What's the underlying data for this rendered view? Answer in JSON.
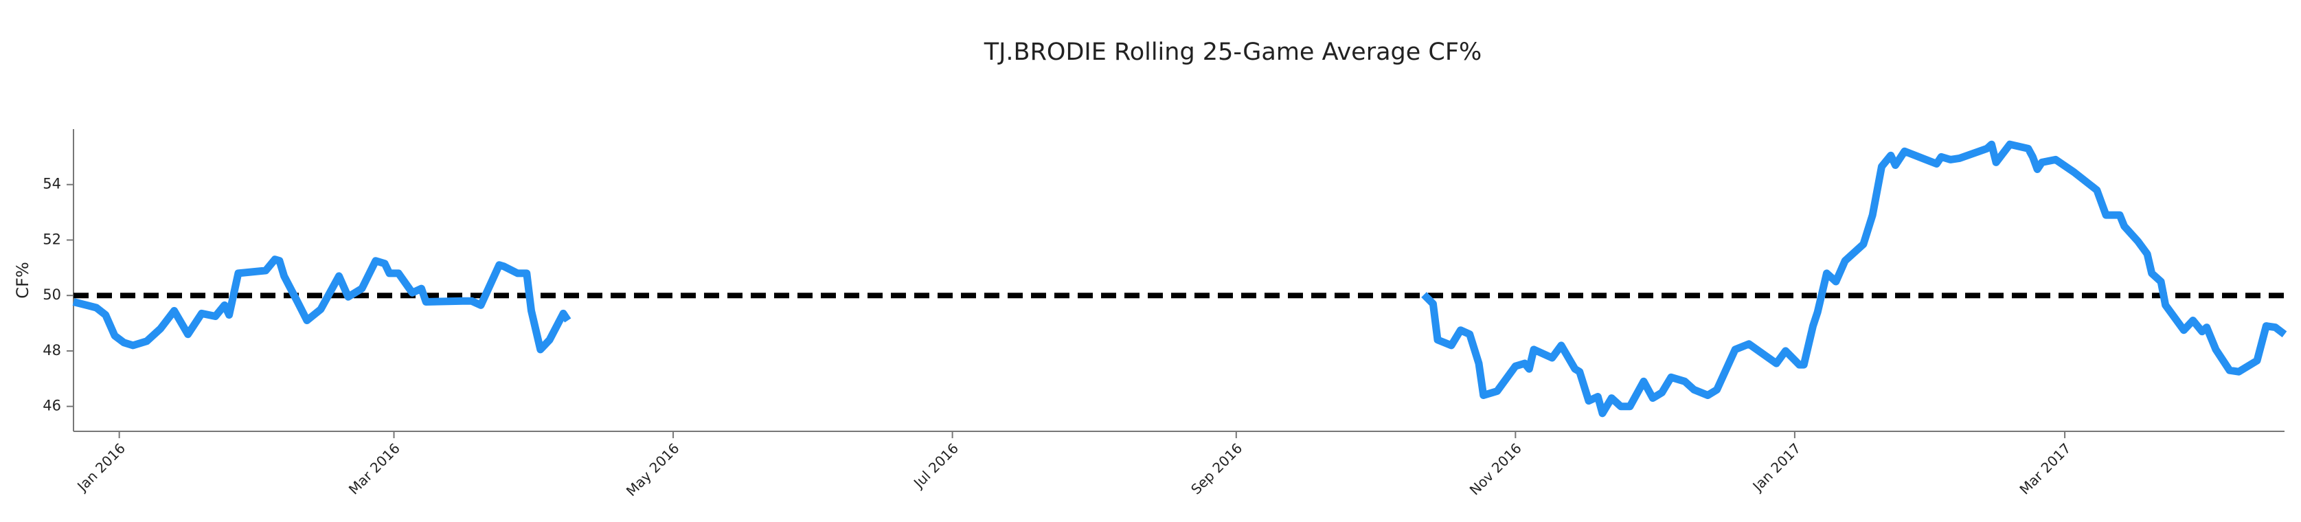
{
  "chart_data": {
    "type": "line",
    "title": "TJ.BRODIE Rolling 25-Game Average CF%",
    "y_label": "CF%",
    "color": "#2590f2",
    "reference_line": {
      "value": 50,
      "color": "#000000",
      "style": "dashed"
    },
    "xlim": [
      "2015-12-22",
      "2017-04-18"
    ],
    "ylim": [
      45.1,
      56
    ],
    "yticks": [
      46,
      48,
      50,
      52,
      54
    ],
    "xticks": [
      {
        "value": "2016-01-01",
        "label": "Jan 2016"
      },
      {
        "value": "2016-03-01",
        "label": "Mar 2016"
      },
      {
        "value": "2016-05-01",
        "label": "May 2016"
      },
      {
        "value": "2016-07-01",
        "label": "Jul 2016"
      },
      {
        "value": "2016-09-01",
        "label": "Sep 2016"
      },
      {
        "value": "2016-11-01",
        "label": "Nov 2016"
      },
      {
        "value": "2017-01-01",
        "label": "Jan 2017"
      },
      {
        "value": "2017-03-01",
        "label": "Mar 2017"
      }
    ],
    "x": [
      "2015-12-22",
      "2015-12-27",
      "2015-12-29",
      "2015-12-31",
      "2016-01-02",
      "2016-01-04",
      "2016-01-07",
      "2016-01-10",
      "2016-01-13",
      "2016-01-16",
      "2016-01-19",
      "2016-01-22",
      "2016-01-24",
      "2016-01-25",
      "2016-01-27",
      "2016-02-02",
      "2016-02-04",
      "2016-02-05",
      "2016-02-06",
      "2016-02-09",
      "2016-02-11",
      "2016-02-14",
      "2016-02-18",
      "2016-02-20",
      "2016-02-23",
      "2016-02-26",
      "2016-02-28",
      "2016-02-29",
      "2016-03-02",
      "2016-03-05",
      "2016-03-07",
      "2016-03-08",
      "2016-03-16",
      "2016-03-18",
      "2016-03-20",
      "2016-03-24",
      "2016-03-25",
      "2016-03-28",
      "2016-03-30",
      "2016-03-31",
      "2016-04-02",
      "2016-04-04",
      "2016-04-07",
      "2016-04-08",
      "2016-07-15",
      "2016-10-12",
      "2016-10-14",
      "2016-10-15",
      "2016-10-18",
      "2016-10-20",
      "2016-10-22",
      "2016-10-24",
      "2016-10-25",
      "2016-10-28",
      "2016-11-01",
      "2016-11-03",
      "2016-11-04",
      "2016-11-05",
      "2016-11-09",
      "2016-11-11",
      "2016-11-14",
      "2016-11-15",
      "2016-11-17",
      "2016-11-19",
      "2016-11-20",
      "2016-11-22",
      "2016-11-24",
      "2016-11-26",
      "2016-11-29",
      "2016-12-01",
      "2016-12-03",
      "2016-12-05",
      "2016-12-08",
      "2016-12-10",
      "2016-12-13",
      "2016-12-15",
      "2016-12-19",
      "2016-12-22",
      "2016-12-28",
      "2016-12-30",
      "2017-01-02",
      "2017-01-03",
      "2017-01-05",
      "2017-01-06",
      "2017-01-08",
      "2017-01-10",
      "2017-01-12",
      "2017-01-16",
      "2017-01-18",
      "2017-01-20",
      "2017-01-22",
      "2017-01-23",
      "2017-01-25",
      "2017-02-01",
      "2017-02-02",
      "2017-02-04",
      "2017-02-06",
      "2017-02-12",
      "2017-02-13",
      "2017-02-14",
      "2017-02-17",
      "2017-02-21",
      "2017-02-22",
      "2017-02-23",
      "2017-02-24",
      "2017-02-27",
      "2017-03-03",
      "2017-03-08",
      "2017-03-10",
      "2017-03-13",
      "2017-03-14",
      "2017-03-17",
      "2017-03-19",
      "2017-03-20",
      "2017-03-22",
      "2017-03-23",
      "2017-03-27",
      "2017-03-29",
      "2017-03-31",
      "2017-04-01",
      "2017-04-03",
      "2017-04-06",
      "2017-04-08",
      "2017-04-12",
      "2017-04-14",
      "2017-04-16",
      "2017-04-18"
    ],
    "values": [
      49.77,
      49.56,
      49.3,
      48.55,
      48.3,
      48.2,
      48.35,
      48.8,
      49.45,
      48.6,
      49.35,
      49.25,
      49.65,
      49.3,
      50.8,
      50.9,
      51.3,
      51.25,
      50.7,
      49.75,
      49.1,
      49.5,
      50.7,
      49.95,
      50.25,
      51.25,
      51.15,
      50.8,
      50.8,
      50.1,
      50.25,
      49.77,
      49.8,
      49.8,
      49.65,
      51.1,
      51.05,
      50.8,
      50.8,
      49.45,
      48.05,
      48.4,
      49.35,
      49.1,
      null,
      50.03,
      49.7,
      48.4,
      48.2,
      48.75,
      48.6,
      47.55,
      46.4,
      46.55,
      47.45,
      47.55,
      47.35,
      48.05,
      47.75,
      48.2,
      47.35,
      47.25,
      46.2,
      46.35,
      45.75,
      46.3,
      46.0,
      46.0,
      46.9,
      46.3,
      46.5,
      47.05,
      46.9,
      46.6,
      46.4,
      46.6,
      48.05,
      48.25,
      47.55,
      48.0,
      47.5,
      47.5,
      48.9,
      49.4,
      50.8,
      50.5,
      51.25,
      51.85,
      52.9,
      54.65,
      55.05,
      54.7,
      55.2,
      54.75,
      55.0,
      54.9,
      54.95,
      55.3,
      55.45,
      54.8,
      55.45,
      55.3,
      55.0,
      54.55,
      54.8,
      54.9,
      54.45,
      53.8,
      52.9,
      52.9,
      52.5,
      51.95,
      51.5,
      50.8,
      50.5,
      49.65,
      48.75,
      49.1,
      48.7,
      48.85,
      48.05,
      47.3,
      47.25,
      47.65,
      48.9,
      48.85,
      48.6
    ]
  }
}
